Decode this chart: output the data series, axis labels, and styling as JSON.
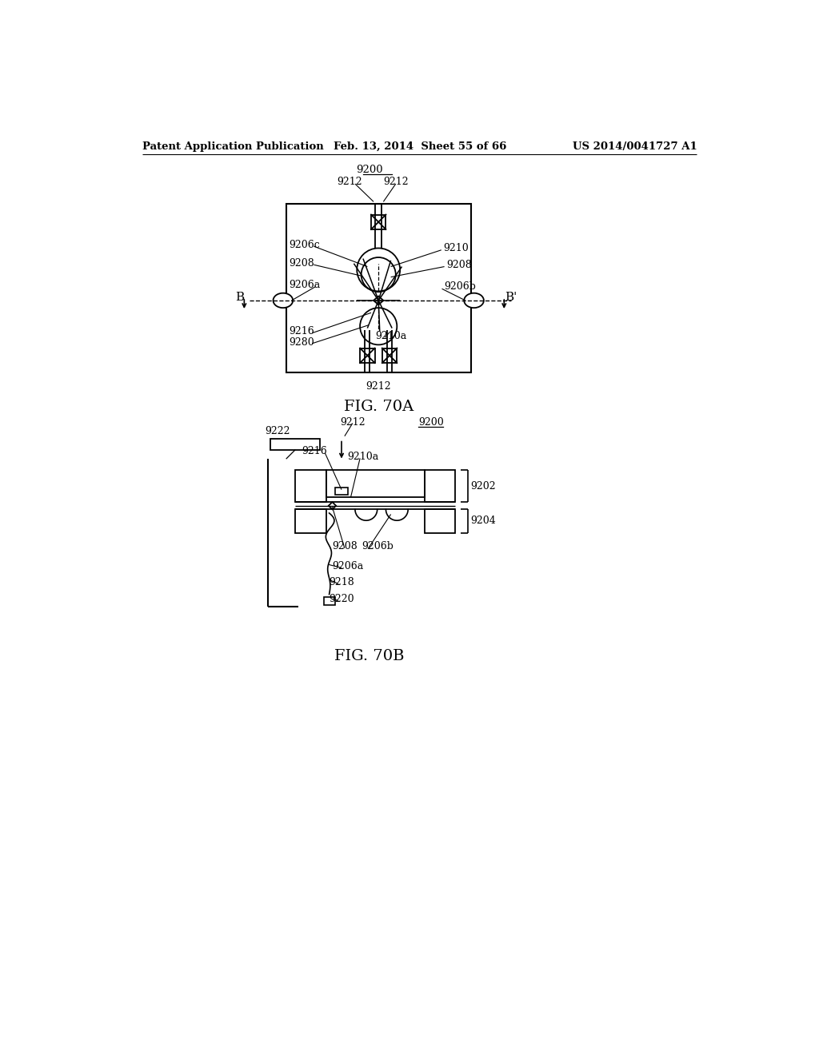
{
  "bg_color": "#ffffff",
  "header_left": "Patent Application Publication",
  "header_mid": "Feb. 13, 2014  Sheet 55 of 66",
  "header_right": "US 2014/0041727 A1",
  "fig_a_caption": "FIG. 70A",
  "fig_b_caption": "FIG. 70B",
  "line_color": "#000000",
  "text_color": "#000000"
}
